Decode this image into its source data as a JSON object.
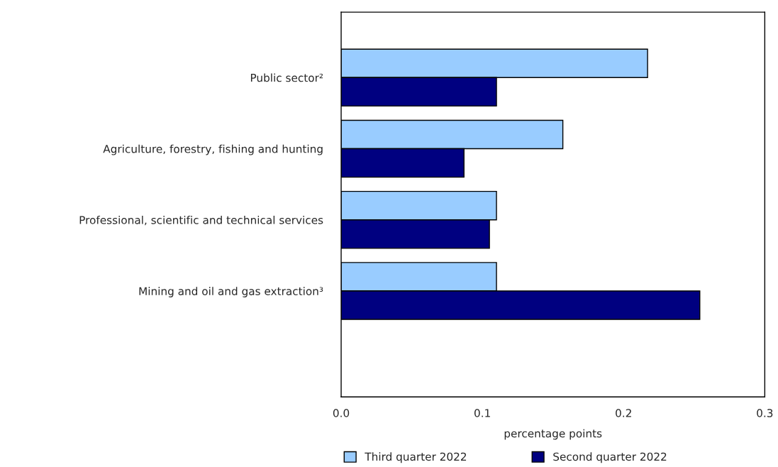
{
  "chart_data": {
    "type": "bar",
    "orientation": "horizontal",
    "categories": [
      "Public sector²",
      "Agriculture, forestry, fishing and hunting",
      "Professional, scientific and technical services",
      "Mining and oil and gas extraction³"
    ],
    "series": [
      {
        "name": "Third quarter 2022",
        "color": "#99ccff",
        "values": [
          0.217,
          0.157,
          0.11,
          0.11
        ]
      },
      {
        "name": "Second quarter 2022",
        "color": "#000080",
        "values": [
          0.11,
          0.087,
          0.105,
          0.254
        ]
      }
    ],
    "xlabel": "percentage points",
    "xlim": [
      0,
      0.3
    ],
    "xticks": [
      {
        "value": 0,
        "label": "0.0"
      },
      0.1,
      0.2,
      0.3
    ],
    "grid": false,
    "legend": "bottom"
  }
}
